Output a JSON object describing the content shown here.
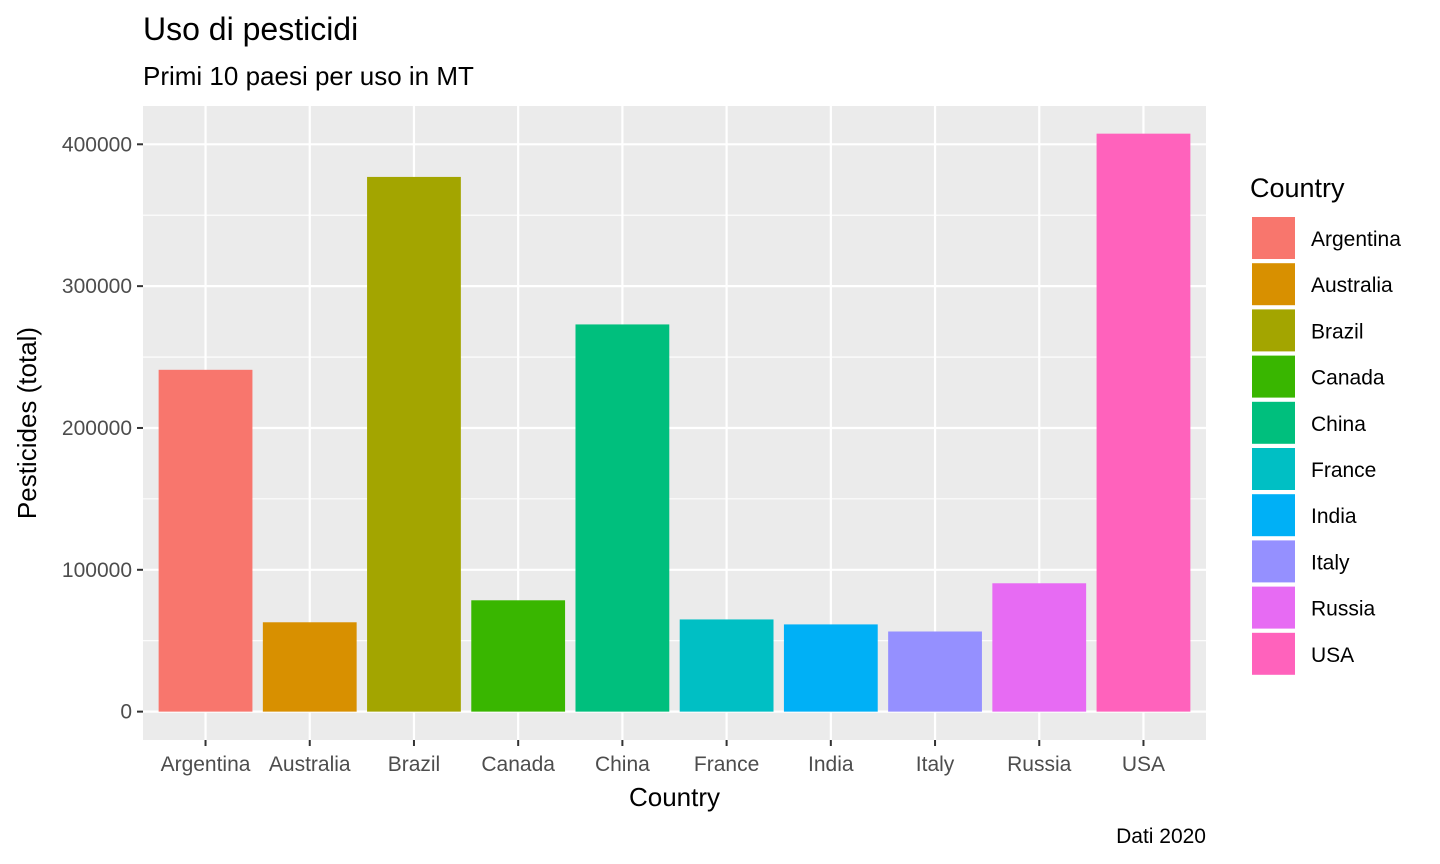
{
  "chart_data": {
    "type": "bar",
    "title": "Uso di pesticidi",
    "subtitle": "Primi 10 paesi per uso in MT",
    "caption": "Dati 2020",
    "xlabel": "Country",
    "ylabel": "Pesticides (total)",
    "categories": [
      "Argentina",
      "Australia",
      "Brazil",
      "Canada",
      "China",
      "France",
      "India",
      "Italy",
      "Russia",
      "USA"
    ],
    "values": [
      241000,
      63000,
      377000,
      78500,
      273000,
      65000,
      61500,
      56500,
      90500,
      407500
    ],
    "colors": [
      "#F8766D",
      "#D89000",
      "#A3A500",
      "#39B600",
      "#00BF7D",
      "#00BFC4",
      "#00B0F6",
      "#9590FF",
      "#E76BF3",
      "#FF62BC"
    ],
    "ylim": [
      -20000,
      427000
    ],
    "yticks": [
      0,
      100000,
      200000,
      300000,
      400000
    ],
    "ytick_labels": [
      "0",
      "100000",
      "200000",
      "300000",
      "400000"
    ],
    "grid": true,
    "panel_background": "#EBEBEB",
    "legend": {
      "title": "Country",
      "position": "right",
      "entries": [
        "Argentina",
        "Australia",
        "Brazil",
        "Canada",
        "China",
        "France",
        "India",
        "Italy",
        "Russia",
        "USA"
      ]
    }
  }
}
